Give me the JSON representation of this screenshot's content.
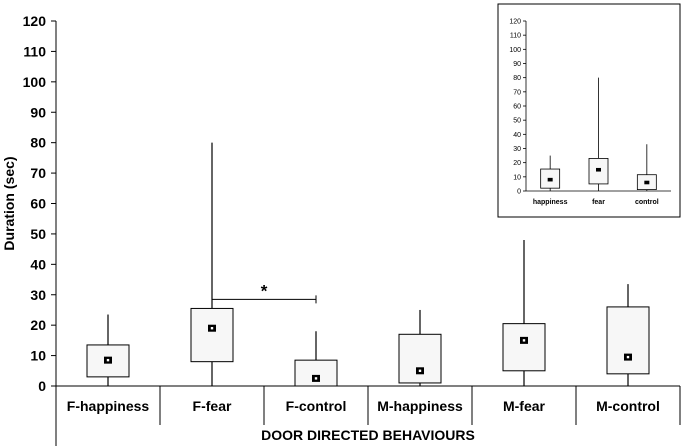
{
  "chart_data": [
    {
      "type": "box",
      "title": "",
      "xlabel": "DOOR DIRECTED BEHAVIOURS",
      "ylabel": "Duration (sec)",
      "ylim": [
        0,
        120
      ],
      "yticks": [
        0,
        10,
        20,
        30,
        40,
        50,
        60,
        70,
        80,
        90,
        100,
        110,
        120
      ],
      "grid": false,
      "categories": [
        "F-happiness",
        "F-fear",
        "F-control",
        "M-happiness",
        "M-fear",
        "M-control"
      ],
      "boxes": [
        {
          "category": "F-happiness",
          "min": 0,
          "q1": 3,
          "median": 8.5,
          "q3": 13.5,
          "max": 23.5
        },
        {
          "category": "F-fear",
          "min": 0,
          "q1": 8,
          "median": 19,
          "q3": 25.5,
          "max": 80
        },
        {
          "category": "F-control",
          "min": 0,
          "q1": 0,
          "median": 2.5,
          "q3": 8.5,
          "max": 18
        },
        {
          "category": "M-happiness",
          "min": 0,
          "q1": 1,
          "median": 5,
          "q3": 17,
          "max": 25
        },
        {
          "category": "M-fear",
          "min": 0,
          "q1": 5,
          "median": 15,
          "q3": 20.5,
          "max": 48
        },
        {
          "category": "M-control",
          "min": 0,
          "q1": 4,
          "median": 9.5,
          "q3": 26,
          "max": 33.5
        }
      ],
      "annotations": [
        {
          "text": "*",
          "from": "F-fear",
          "to": "F-control",
          "y": 28.5
        }
      ]
    },
    {
      "type": "box",
      "title": "",
      "xlabel": "",
      "ylabel": "",
      "ylim": [
        0,
        120
      ],
      "yticks": [
        0,
        10,
        20,
        30,
        40,
        50,
        60,
        70,
        80,
        90,
        100,
        110,
        120
      ],
      "grid": false,
      "legend": "inset top-right",
      "categories": [
        "happiness",
        "fear",
        "control"
      ],
      "boxes": [
        {
          "category": "happiness",
          "min": 0,
          "q1": 2,
          "median": 8,
          "q3": 15.5,
          "max": 25
        },
        {
          "category": "fear",
          "min": 0,
          "q1": 5,
          "median": 15,
          "q3": 23,
          "max": 80
        },
        {
          "category": "control",
          "min": 0,
          "q1": 1,
          "median": 6,
          "q3": 11.5,
          "max": 33
        }
      ]
    }
  ]
}
